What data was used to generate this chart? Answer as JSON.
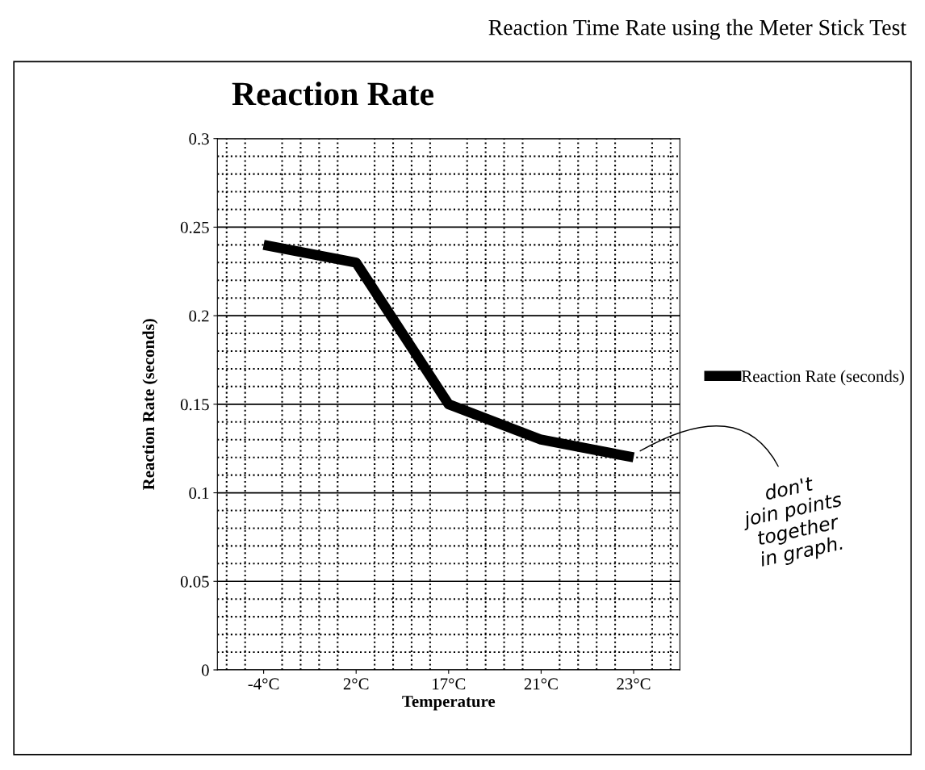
{
  "chart_data": {
    "type": "line",
    "title": "Reaction Rate",
    "xlabel": "Temperature",
    "ylabel": "Reaction Rate (seconds)",
    "categories": [
      "-4°C",
      "2°C",
      "17°C",
      "21°C",
      "23°C"
    ],
    "series": [
      {
        "name": "Reaction Rate (seconds)",
        "color": "#000000",
        "values": [
          0.24,
          0.23,
          0.15,
          0.13,
          0.12
        ]
      }
    ],
    "ylim": [
      0,
      0.3
    ],
    "yticks": [
      0,
      0.05,
      0.1,
      0.15,
      0.2,
      0.25,
      0.3
    ],
    "grid": true,
    "legend": "right",
    "marker": "none",
    "line_style": "solid",
    "annotations": [
      "Reaction Time Rate using the Meter Stick Test",
      "don't\njoin points\ntogether\nin graph."
    ]
  }
}
